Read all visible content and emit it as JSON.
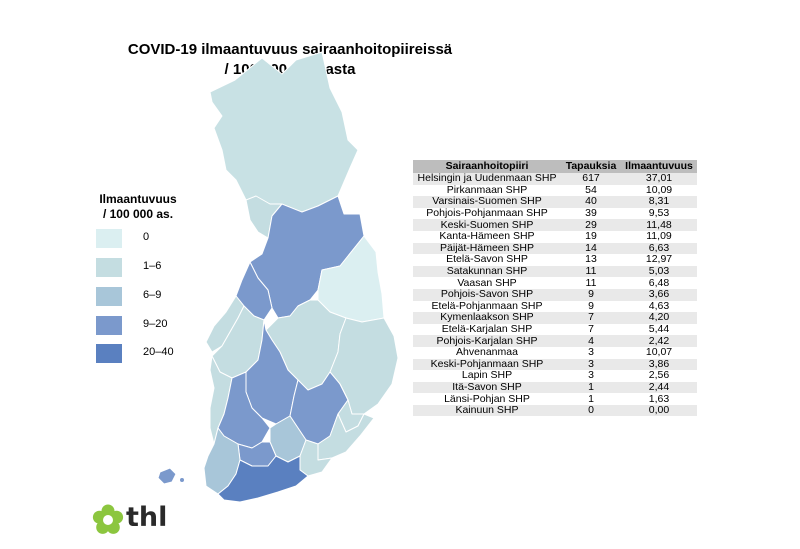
{
  "title": {
    "line1": "COVID-19 ilmaantuvuus sairaanhoitopiireissä",
    "line2": "/ 100 000 asukasta"
  },
  "legend": {
    "title_line1": "Ilmaantuvuus",
    "title_line2": "/ 100 000 as.",
    "items": [
      {
        "label": "0",
        "color": "#dbeff1"
      },
      {
        "label": "1–6",
        "color": "#c4dde1"
      },
      {
        "label": "6–9",
        "color": "#a8c6d9"
      },
      {
        "label": "9–20",
        "color": "#7b99cc"
      },
      {
        "label": "20–40",
        "color": "#5a80c0"
      }
    ]
  },
  "table": {
    "headers": [
      "Sairaanhoitopiiri",
      "Tapauksia",
      "Ilmaantuvuus"
    ],
    "rows": [
      {
        "district": "Helsingin ja Uudenmaan SHP",
        "cases": "617",
        "incidence": "37,01"
      },
      {
        "district": "Pirkanmaan SHP",
        "cases": "54",
        "incidence": "10,09"
      },
      {
        "district": "Varsinais-Suomen SHP",
        "cases": "40",
        "incidence": "8,31"
      },
      {
        "district": "Pohjois-Pohjanmaan SHP",
        "cases": "39",
        "incidence": "9,53"
      },
      {
        "district": "Keski-Suomen SHP",
        "cases": "29",
        "incidence": "11,48"
      },
      {
        "district": "Kanta-Hämeen SHP",
        "cases": "19",
        "incidence": "11,09"
      },
      {
        "district": "Päijät-Hämeen SHP",
        "cases": "14",
        "incidence": "6,63"
      },
      {
        "district": "Etelä-Savon SHP",
        "cases": "13",
        "incidence": "12,97"
      },
      {
        "district": "Satakunnan SHP",
        "cases": "11",
        "incidence": "5,03"
      },
      {
        "district": "Vaasan SHP",
        "cases": "11",
        "incidence": "6,48"
      },
      {
        "district": "Pohjois-Savon SHP",
        "cases": "9",
        "incidence": "3,66"
      },
      {
        "district": "Etelä-Pohjanmaan SHP",
        "cases": "9",
        "incidence": "4,63"
      },
      {
        "district": "Kymenlaakson SHP",
        "cases": "7",
        "incidence": "4,20"
      },
      {
        "district": "Etelä-Karjalan SHP",
        "cases": "7",
        "incidence": "5,44"
      },
      {
        "district": "Pohjois-Karjalan SHP",
        "cases": "4",
        "incidence": "2,42"
      },
      {
        "district": "Ahvenanmaa",
        "cases": "3",
        "incidence": "10,07"
      },
      {
        "district": "Keski-Pohjanmaan SHP",
        "cases": "3",
        "incidence": "3,86"
      },
      {
        "district": "Lapin SHP",
        "cases": "3",
        "incidence": "2,56"
      },
      {
        "district": "Itä-Savon SHP",
        "cases": "1",
        "incidence": "2,44"
      },
      {
        "district": "Länsi-Pohjan SHP",
        "cases": "1",
        "incidence": "1,63"
      },
      {
        "district": "Kainuun SHP",
        "cases": "0",
        "incidence": "0,00"
      }
    ]
  },
  "logo": {
    "text": "thl",
    "color": "#8cc63f"
  }
}
